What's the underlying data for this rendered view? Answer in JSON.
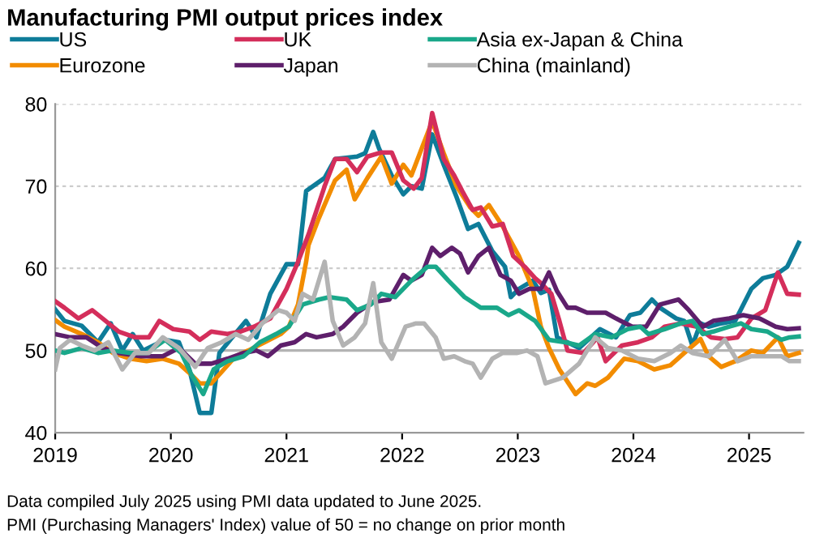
{
  "chart_data": {
    "type": "line",
    "title": "Manufacturing PMI output prices index",
    "xlim": [
      2019,
      2025.47
    ],
    "xticks": [
      2019,
      2020,
      2021,
      2022,
      2023,
      2024,
      2025
    ],
    "ylim": [
      40,
      80
    ],
    "yticks": [
      40,
      50,
      60,
      70,
      80
    ],
    "grid": "y",
    "legend": "top",
    "line_style": "solid",
    "marker": "none",
    "ref_lines": [
      {
        "axis": "y",
        "value": 50,
        "color": "#b3b3b3"
      }
    ],
    "annotations": [
      "Data compiled July 2025 using PMI data updated to June 2025.",
      "PMI (Purchasing Managers' Index) value of 50 = no change on prior month"
    ],
    "series": [
      {
        "name": "US",
        "color": "#0e7c99",
        "x": [
          2019.0,
          2019.08,
          2019.23,
          2019.37,
          2019.48,
          2019.58,
          2019.67,
          2019.76,
          2019.95,
          2020.07,
          2020.16,
          2020.25,
          2020.35,
          2020.42,
          2020.53,
          2020.65,
          2020.74,
          2020.86,
          2021.0,
          2021.1,
          2021.17,
          2021.33,
          2021.42,
          2021.61,
          2021.68,
          2021.75,
          2021.8,
          2021.91,
          2022.01,
          2022.08,
          2022.17,
          2022.26,
          2022.36,
          2022.47,
          2022.57,
          2022.66,
          2022.78,
          2022.89,
          2022.94,
          2023.01,
          2023.13,
          2023.2,
          2023.27,
          2023.34,
          2023.43,
          2023.53,
          2023.71,
          2023.85,
          2023.97,
          2024.06,
          2024.16,
          2024.23,
          2024.37,
          2024.44,
          2024.51,
          2024.58,
          2024.65,
          2024.76,
          2024.88,
          2025.02,
          2025.12,
          2025.23,
          2025.33,
          2025.43
        ],
        "values": [
          55,
          53.6,
          53,
          51,
          53.3,
          50,
          52,
          50,
          51.3,
          51,
          47.7,
          42.4,
          42.4,
          49.7,
          51.6,
          53.6,
          51.6,
          56.9,
          60.5,
          60.5,
          69.4,
          71,
          73.3,
          73.6,
          74,
          76.6,
          74.6,
          71.3,
          69,
          70,
          69.7,
          76.3,
          72.6,
          68.7,
          64.8,
          65.4,
          62.1,
          60.2,
          56.5,
          57.5,
          58.5,
          57,
          57.4,
          51.6,
          51,
          50.3,
          52.6,
          51.6,
          54.3,
          54.6,
          56.2,
          55.2,
          53.9,
          53.6,
          50.6,
          53.3,
          52.9,
          53.3,
          53.6,
          57.5,
          58.8,
          59.2,
          60.2,
          63.1
        ]
      },
      {
        "name": "Eurozone",
        "color": "#f28c00",
        "x": [
          2019.0,
          2019.08,
          2019.23,
          2019.37,
          2019.5,
          2019.65,
          2019.79,
          2019.93,
          2020.07,
          2020.18,
          2020.25,
          2020.35,
          2020.44,
          2020.56,
          2020.67,
          2020.81,
          2020.95,
          2021.02,
          2021.1,
          2021.17,
          2021.19,
          2021.28,
          2021.42,
          2021.52,
          2021.59,
          2021.7,
          2021.82,
          2021.91,
          2022.01,
          2022.08,
          2022.17,
          2022.26,
          2022.36,
          2022.47,
          2022.59,
          2022.66,
          2022.75,
          2022.87,
          2023.01,
          2023.13,
          2023.2,
          2023.27,
          2023.36,
          2023.5,
          2023.6,
          2023.67,
          2023.78,
          2023.92,
          2024.04,
          2024.18,
          2024.32,
          2024.44,
          2024.58,
          2024.65,
          2024.76,
          2024.88,
          2025.02,
          2025.12,
          2025.25,
          2025.33,
          2025.43
        ],
        "values": [
          53.7,
          52.9,
          52,
          51,
          49.7,
          49,
          48.7,
          49,
          48.4,
          47,
          46,
          46,
          47.4,
          49.3,
          50,
          51,
          52,
          52.9,
          55.6,
          60.8,
          62.8,
          66.1,
          70.7,
          72,
          68.4,
          71,
          73.6,
          70.3,
          72.6,
          71.3,
          74.6,
          77.9,
          74,
          70,
          67.4,
          66.4,
          67.7,
          65.1,
          61.5,
          57.5,
          52.9,
          50.3,
          47.7,
          44.7,
          46,
          45.7,
          46.7,
          49,
          48.7,
          47.7,
          48.2,
          49.7,
          51.4,
          49.3,
          48,
          48.7,
          50,
          49.7,
          51.6,
          49.3,
          49.7
        ]
      },
      {
        "name": "UK",
        "color": "#d42e5b",
        "x": [
          2019.0,
          2019.08,
          2019.2,
          2019.32,
          2019.41,
          2019.55,
          2019.69,
          2019.81,
          2019.9,
          2020.02,
          2020.16,
          2020.25,
          2020.35,
          2020.49,
          2020.6,
          2020.72,
          2020.86,
          2021.0,
          2021.1,
          2021.19,
          2021.33,
          2021.42,
          2021.52,
          2021.61,
          2021.7,
          2021.82,
          2021.91,
          2022.01,
          2022.1,
          2022.17,
          2022.26,
          2022.36,
          2022.45,
          2022.52,
          2022.61,
          2022.68,
          2022.78,
          2022.87,
          2022.96,
          2023.06,
          2023.15,
          2023.2,
          2023.29,
          2023.36,
          2023.43,
          2023.57,
          2023.69,
          2023.76,
          2023.9,
          2024.04,
          2024.16,
          2024.27,
          2024.41,
          2024.55,
          2024.67,
          2024.79,
          2024.9,
          2025.02,
          2025.14,
          2025.25,
          2025.33,
          2025.43
        ],
        "values": [
          56,
          55.2,
          53.9,
          54.9,
          53.9,
          52.3,
          51.6,
          51.6,
          53.6,
          52.6,
          52.3,
          51.3,
          52.3,
          52,
          52.3,
          52.9,
          53.9,
          57.5,
          60.8,
          64.1,
          70,
          73.3,
          73.3,
          71.7,
          73.6,
          74.1,
          74.1,
          70.7,
          69.7,
          71,
          78.9,
          73.3,
          71.3,
          69.4,
          67.1,
          67.4,
          65.1,
          65.4,
          61.5,
          60.2,
          58.8,
          58.2,
          56.9,
          53.6,
          50,
          49.7,
          51.6,
          48.7,
          50.6,
          51,
          51.6,
          52.9,
          53.3,
          52.9,
          51.6,
          51.4,
          51.6,
          53.9,
          54.9,
          59.5,
          56.9,
          56.8
        ]
      },
      {
        "name": "Japan",
        "color": "#5e1f6b",
        "x": [
          2019.0,
          2019.13,
          2019.27,
          2019.41,
          2019.55,
          2019.74,
          2019.93,
          2020.07,
          2020.21,
          2020.35,
          2020.49,
          2020.63,
          2020.74,
          2020.84,
          2020.95,
          2021.07,
          2021.17,
          2021.26,
          2021.4,
          2021.49,
          2021.61,
          2021.75,
          2021.89,
          2022.01,
          2022.08,
          2022.17,
          2022.26,
          2022.33,
          2022.43,
          2022.5,
          2022.57,
          2022.66,
          2022.75,
          2022.85,
          2022.94,
          2023.01,
          2023.1,
          2023.2,
          2023.27,
          2023.34,
          2023.43,
          2023.5,
          2023.6,
          2023.76,
          2023.85,
          2023.99,
          2024.11,
          2024.23,
          2024.39,
          2024.48,
          2024.6,
          2024.69,
          2024.83,
          2024.95,
          2025.09,
          2025.23,
          2025.33,
          2025.43
        ],
        "values": [
          52,
          51.6,
          51.6,
          50.3,
          49.7,
          49.3,
          49.3,
          50.3,
          48.4,
          48.4,
          49,
          49.7,
          50,
          49.3,
          50.6,
          51,
          52,
          51.6,
          52,
          52.9,
          54.6,
          55.9,
          56.2,
          59.2,
          58.5,
          59.2,
          62.5,
          61.5,
          62.5,
          61.8,
          59.5,
          61.5,
          62.5,
          59.2,
          58.5,
          56.9,
          57.5,
          57.5,
          59.5,
          57.2,
          55.2,
          55.2,
          54.6,
          54.6,
          53.9,
          52.9,
          52.9,
          55.6,
          56.2,
          54.9,
          52.9,
          53.6,
          53.9,
          54.3,
          53.9,
          52.9,
          52.6,
          52.7
        ]
      },
      {
        "name": "Asia ex-Japan & China",
        "color": "#1aa88a",
        "x": [
          2019.0,
          2019.08,
          2019.23,
          2019.37,
          2019.5,
          2019.65,
          2019.79,
          2019.95,
          2020.09,
          2020.18,
          2020.28,
          2020.37,
          2020.49,
          2020.63,
          2020.77,
          2020.91,
          2021.02,
          2021.14,
          2021.28,
          2021.37,
          2021.52,
          2021.61,
          2021.73,
          2021.82,
          2021.94,
          2022.08,
          2022.22,
          2022.29,
          2022.4,
          2022.54,
          2022.68,
          2022.82,
          2022.92,
          2023.01,
          2023.15,
          2023.27,
          2023.41,
          2023.53,
          2023.67,
          2023.81,
          2023.95,
          2024.06,
          2024.13,
          2024.27,
          2024.41,
          2024.51,
          2024.6,
          2024.69,
          2024.83,
          2024.93,
          2025.02,
          2025.16,
          2025.28,
          2025.35,
          2025.43
        ],
        "values": [
          50,
          49.7,
          50.3,
          49.7,
          50,
          49.7,
          49.7,
          51.3,
          49.7,
          47,
          44.7,
          47.7,
          48.7,
          49.3,
          51,
          52,
          52.9,
          55.6,
          56.2,
          56.5,
          56.2,
          54.9,
          55.6,
          56.9,
          56.5,
          58.5,
          60.2,
          60.2,
          58.5,
          56.5,
          55.2,
          55.2,
          54.3,
          54.9,
          53.6,
          51.3,
          51,
          50.6,
          52,
          51.6,
          52.6,
          52.9,
          52,
          52.6,
          53.3,
          53.6,
          52,
          52.3,
          52.9,
          53.3,
          52.6,
          52.3,
          51.3,
          51.6,
          51.7
        ]
      },
      {
        "name": "China (mainland)",
        "color": "#b3b3b3",
        "x": [
          2019.0,
          2019.04,
          2019.13,
          2019.23,
          2019.34,
          2019.46,
          2019.58,
          2019.69,
          2019.81,
          2019.93,
          2020.07,
          2020.21,
          2020.32,
          2020.44,
          2020.56,
          2020.67,
          2020.79,
          2020.93,
          2021.0,
          2021.07,
          2021.14,
          2021.23,
          2021.33,
          2021.4,
          2021.49,
          2021.59,
          2021.68,
          2021.75,
          2021.82,
          2021.91,
          2022.03,
          2022.12,
          2022.19,
          2022.29,
          2022.36,
          2022.45,
          2022.54,
          2022.61,
          2022.68,
          2022.78,
          2022.87,
          2022.99,
          2023.08,
          2023.17,
          2023.24,
          2023.39,
          2023.53,
          2023.67,
          2023.78,
          2023.9,
          2024.04,
          2024.18,
          2024.32,
          2024.41,
          2024.51,
          2024.65,
          2024.79,
          2024.9,
          2025.02,
          2025.16,
          2025.28,
          2025.35,
          2025.43
        ],
        "values": [
          47.7,
          50.3,
          51.3,
          50.6,
          50,
          51,
          47.7,
          49.7,
          49.7,
          51.6,
          50.3,
          48,
          50.3,
          51,
          52,
          51.3,
          53.3,
          54.9,
          54.6,
          53.6,
          56.9,
          56.2,
          60.8,
          53.6,
          50.6,
          51.6,
          53.3,
          58.2,
          51,
          49,
          52.9,
          53.3,
          53.3,
          51.6,
          49,
          49.3,
          48.7,
          48.4,
          46.7,
          49,
          49.7,
          49.7,
          50,
          49.3,
          46,
          46.7,
          48.4,
          51.6,
          50.3,
          50,
          49,
          48.7,
          49.7,
          50.6,
          49.7,
          49.3,
          51.3,
          48.7,
          49.3,
          49.3,
          49.3,
          48.7,
          48.7
        ]
      }
    ]
  }
}
